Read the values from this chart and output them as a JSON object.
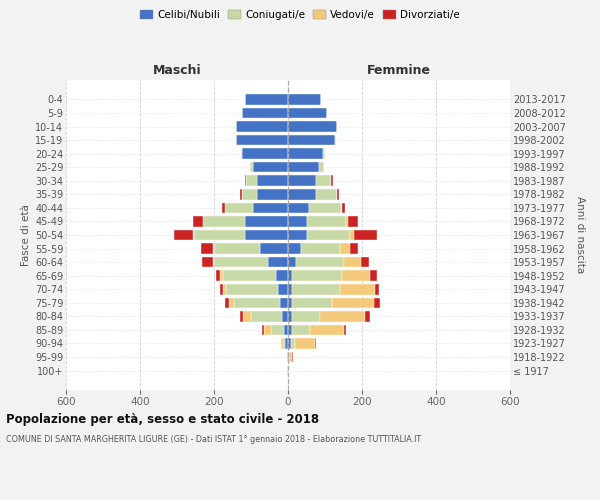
{
  "age_groups": [
    "100+",
    "95-99",
    "90-94",
    "85-89",
    "80-84",
    "75-79",
    "70-74",
    "65-69",
    "60-64",
    "55-59",
    "50-54",
    "45-49",
    "40-44",
    "35-39",
    "30-34",
    "25-29",
    "20-24",
    "15-19",
    "10-14",
    "5-9",
    "0-4"
  ],
  "birth_years": [
    "≤ 1917",
    "1918-1922",
    "1923-1927",
    "1928-1932",
    "1933-1937",
    "1938-1942",
    "1943-1947",
    "1948-1952",
    "1953-1957",
    "1958-1962",
    "1963-1967",
    "1968-1972",
    "1973-1977",
    "1978-1982",
    "1983-1987",
    "1988-1992",
    "1993-1997",
    "1998-2002",
    "2003-2007",
    "2008-2012",
    "2013-2017"
  ],
  "colors": {
    "celibi": "#4472c4",
    "coniugati": "#c8d9a8",
    "vedovi": "#f5c97a",
    "divorziati": "#cc2222"
  },
  "maschi": {
    "celibi": [
      2,
      3,
      8,
      12,
      15,
      22,
      28,
      32,
      55,
      75,
      115,
      115,
      95,
      85,
      85,
      95,
      125,
      140,
      140,
      125,
      115
    ],
    "coniugati": [
      0,
      0,
      5,
      35,
      85,
      125,
      140,
      145,
      145,
      125,
      140,
      115,
      75,
      40,
      28,
      8,
      3,
      1,
      0,
      0,
      0
    ],
    "vedovi": [
      0,
      0,
      5,
      18,
      22,
      12,
      8,
      6,
      4,
      2,
      2,
      0,
      0,
      0,
      0,
      0,
      0,
      0,
      0,
      0,
      0
    ],
    "divorziati": [
      0,
      0,
      0,
      4,
      8,
      12,
      8,
      12,
      28,
      32,
      52,
      28,
      8,
      4,
      4,
      0,
      0,
      0,
      0,
      0,
      0
    ]
  },
  "femmine": {
    "celibi": [
      1,
      3,
      8,
      12,
      12,
      12,
      12,
      12,
      22,
      35,
      52,
      52,
      58,
      75,
      75,
      85,
      95,
      128,
      132,
      105,
      90
    ],
    "coniugati": [
      0,
      1,
      12,
      48,
      75,
      108,
      128,
      135,
      128,
      105,
      115,
      105,
      85,
      58,
      42,
      12,
      4,
      1,
      0,
      0,
      0
    ],
    "vedovi": [
      2,
      8,
      52,
      90,
      122,
      112,
      95,
      75,
      48,
      28,
      12,
      4,
      4,
      0,
      0,
      0,
      0,
      0,
      0,
      0,
      0
    ],
    "divorziati": [
      0,
      1,
      4,
      6,
      12,
      16,
      12,
      18,
      22,
      22,
      62,
      28,
      8,
      4,
      4,
      1,
      0,
      0,
      0,
      0,
      0
    ]
  },
  "xlim": 600,
  "xticks": [
    -600,
    -400,
    -200,
    0,
    200,
    400,
    600
  ],
  "title": "Popolazione per età, sesso e stato civile - 2018",
  "subtitle": "COMUNE DI SANTA MARGHERITA LIGURE (GE) - Dati ISTAT 1° gennaio 2018 - Elaborazione TUTTITALIA.IT",
  "ylabel_left": "Fasce di età",
  "ylabel_right": "Anni di nascita",
  "label_maschi": "Maschi",
  "label_femmine": "Femmine",
  "legend_labels": [
    "Celibi/Nubili",
    "Coniugati/e",
    "Vedovi/e",
    "Divorziati/e"
  ],
  "bg_color": "#f2f2f2",
  "plot_bg_color": "#ffffff",
  "bar_height": 0.78
}
